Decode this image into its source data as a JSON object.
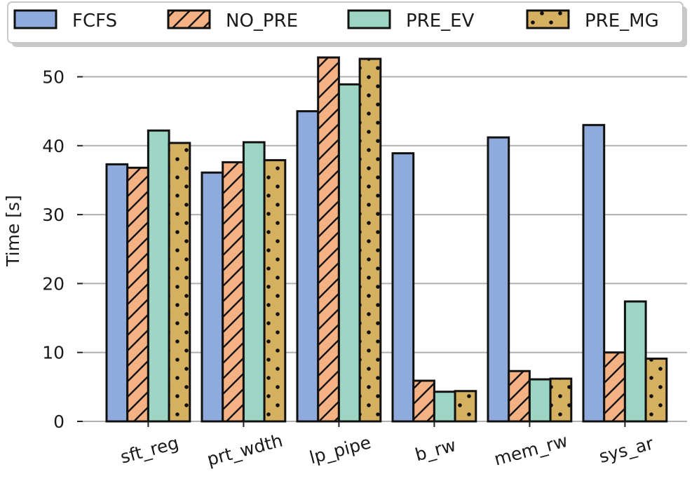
{
  "chart_data": {
    "type": "bar",
    "title": "",
    "xlabel": "",
    "ylabel": "Time [s]",
    "ylim": [
      0,
      55
    ],
    "yticks": [
      0,
      10,
      20,
      30,
      40,
      50
    ],
    "grid": "y",
    "legend_position": "top",
    "categories": [
      "sft_reg",
      "prt_wdth",
      "lp_pipe",
      "b_rw",
      "mem_rw",
      "sys_ar"
    ],
    "series": [
      {
        "name": "FCFS",
        "color": "#8faadc",
        "pattern": "none",
        "values": [
          37.3,
          36.1,
          45.0,
          38.9,
          41.2,
          43.0
        ]
      },
      {
        "name": "NO_PRE",
        "color": "#f4b183",
        "pattern": "hatch",
        "values": [
          36.8,
          37.6,
          52.8,
          5.9,
          7.3,
          10.0
        ]
      },
      {
        "name": "PRE_EV",
        "color": "#9dd5c4",
        "pattern": "none",
        "values": [
          42.2,
          40.5,
          48.9,
          4.3,
          6.1,
          17.4
        ]
      },
      {
        "name": "PRE_MG",
        "color": "#d6b061",
        "pattern": "dots",
        "values": [
          40.4,
          37.9,
          52.6,
          4.4,
          6.2,
          9.1
        ]
      }
    ]
  }
}
